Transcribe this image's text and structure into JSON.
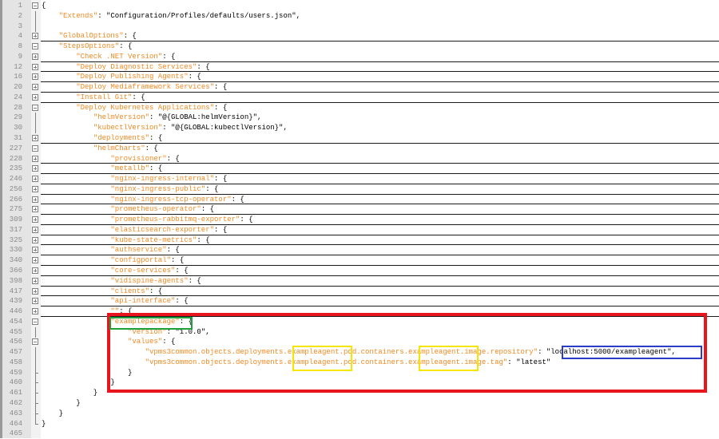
{
  "editor": {
    "colors": {
      "key": "#f08a24",
      "text": "#000000",
      "brace": "#6b5fa0",
      "highlight_package": "#1ea03c",
      "highlight_region": "#e8141e",
      "highlight_agent": "#f5e600",
      "highlight_repository": "#2a3cc8"
    },
    "lines": [
      {
        "n": "1",
        "indent": 0,
        "key": "",
        "rest": "{",
        "fold": "minus-root",
        "folded": false
      },
      {
        "n": "2",
        "indent": 1,
        "key": "\"Extends\"",
        "rest": ": \"Configuration/Profiles/defaults/users.json\",",
        "fold": "vline",
        "folded": false
      },
      {
        "n": "3",
        "indent": 0,
        "key": "",
        "rest": "",
        "fold": "vline",
        "folded": false
      },
      {
        "n": "4",
        "indent": 1,
        "key": "\"GlobalOptions\"",
        "rest": ": {",
        "fold": "plus",
        "folded": true
      },
      {
        "n": "8",
        "indent": 1,
        "key": "\"StepsOptions\"",
        "rest": ": {",
        "fold": "minus",
        "folded": false
      },
      {
        "n": "9",
        "indent": 2,
        "key": "\"Check .NET Version\"",
        "rest": ": {",
        "fold": "plus",
        "folded": true
      },
      {
        "n": "12",
        "indent": 2,
        "key": "\"Deploy Diagnostic Services\"",
        "rest": ": {",
        "fold": "plus",
        "folded": true
      },
      {
        "n": "16",
        "indent": 2,
        "key": "\"Deploy Publishing Agents\"",
        "rest": ": {",
        "fold": "plus",
        "folded": true
      },
      {
        "n": "20",
        "indent": 2,
        "key": "\"Deploy Mediaframework Services\"",
        "rest": ": {",
        "fold": "plus",
        "folded": true
      },
      {
        "n": "24",
        "indent": 2,
        "key": "\"Install Git\"",
        "rest": ": {",
        "fold": "plus",
        "folded": true
      },
      {
        "n": "28",
        "indent": 2,
        "key": "\"Deploy Kubernetes Applications\"",
        "rest": ": {",
        "fold": "minus",
        "folded": false
      },
      {
        "n": "29",
        "indent": 3,
        "key": "\"helmVersion\"",
        "rest": ": \"@{GLOBAL:helmVersion}\",",
        "fold": "vline",
        "folded": false
      },
      {
        "n": "30",
        "indent": 3,
        "key": "\"kubectlVersion\"",
        "rest": ": \"@{GLOBAL:kubectlVersion}\",",
        "fold": "vline",
        "folded": false
      },
      {
        "n": "31",
        "indent": 3,
        "key": "\"deployments\"",
        "rest": ": {",
        "fold": "plus",
        "folded": true
      },
      {
        "n": "227",
        "indent": 3,
        "key": "\"helmCharts\"",
        "rest": ": {",
        "fold": "minus",
        "folded": false
      },
      {
        "n": "228",
        "indent": 4,
        "key": "\"provisioner\"",
        "rest": ": {",
        "fold": "plus",
        "folded": true
      },
      {
        "n": "235",
        "indent": 4,
        "key": "\"metallb\"",
        "rest": ": {",
        "fold": "plus",
        "folded": true
      },
      {
        "n": "246",
        "indent": 4,
        "key": "\"nginx-ingress-internal\"",
        "rest": ": {",
        "fold": "plus",
        "folded": true
      },
      {
        "n": "256",
        "indent": 4,
        "key": "\"nginx-ingress-public\"",
        "rest": ": {",
        "fold": "plus",
        "folded": true
      },
      {
        "n": "266",
        "indent": 4,
        "key": "\"nginx-ingress-tcp-operator\"",
        "rest": ": {",
        "fold": "plus",
        "folded": true
      },
      {
        "n": "275",
        "indent": 4,
        "key": "\"prometheus-operator\"",
        "rest": ": {",
        "fold": "plus",
        "folded": true
      },
      {
        "n": "309",
        "indent": 4,
        "key": "\"prometheus-rabbitmq-exporter\"",
        "rest": ": {",
        "fold": "plus",
        "folded": true
      },
      {
        "n": "317",
        "indent": 4,
        "key": "\"elasticsearch-exporter\"",
        "rest": ": {",
        "fold": "plus",
        "folded": true
      },
      {
        "n": "325",
        "indent": 4,
        "key": "\"kube-state-metrics\"",
        "rest": ": {",
        "fold": "plus",
        "folded": true
      },
      {
        "n": "330",
        "indent": 4,
        "key": "\"authservice\"",
        "rest": ": {",
        "fold": "plus",
        "folded": true
      },
      {
        "n": "340",
        "indent": 4,
        "key": "\"configportal\"",
        "rest": ": {",
        "fold": "plus",
        "folded": true
      },
      {
        "n": "366",
        "indent": 4,
        "key": "\"core-services\"",
        "rest": ": {",
        "fold": "plus",
        "folded": true
      },
      {
        "n": "398",
        "indent": 4,
        "key": "\"vidispine-agents\"",
        "rest": ": {",
        "fold": "plus",
        "folded": true
      },
      {
        "n": "417",
        "indent": 4,
        "key": "\"clients\"",
        "rest": ": {",
        "fold": "plus",
        "folded": true
      },
      {
        "n": "439",
        "indent": 4,
        "key": "\"api-interface\"",
        "rest": ": {",
        "fold": "plus",
        "folded": true
      },
      {
        "n": "446",
        "indent": 4,
        "key": "\"\"",
        "rest": ": {",
        "fold": "plus",
        "folded": true
      },
      {
        "n": "454",
        "indent": 4,
        "key": "\"examplepackage\"",
        "rest": ": {",
        "fold": "minus",
        "folded": false
      },
      {
        "n": "455",
        "indent": 5,
        "key": "\"version\"",
        "rest": ": \"1.0.0\",",
        "fold": "vline",
        "folded": false
      },
      {
        "n": "456",
        "indent": 5,
        "key": "\"values\"",
        "rest": ": {",
        "fold": "minus",
        "folded": false
      },
      {
        "n": "457",
        "indent": 6,
        "key": "\"vpms3common.objects.deployments.exampleagent.pod.containers.exampleagent.image.repository\"",
        "rest": ": \"localhost:5000/exampleagent\",",
        "fold": "vline",
        "folded": false
      },
      {
        "n": "458",
        "indent": 6,
        "key": "\"vpms3common.objects.deployments.exampleagent.pod.containers.exampleagent.image.tag\"",
        "rest": ": \"latest\"",
        "fold": "vline",
        "folded": false
      },
      {
        "n": "459",
        "indent": 5,
        "key": "",
        "rest": "}",
        "fold": "tick",
        "folded": false
      },
      {
        "n": "460",
        "indent": 4,
        "key": "",
        "rest": "}",
        "fold": "tick",
        "folded": false
      },
      {
        "n": "461",
        "indent": 3,
        "key": "",
        "rest": "}",
        "fold": "tick",
        "folded": false
      },
      {
        "n": "462",
        "indent": 2,
        "key": "",
        "rest": "}",
        "fold": "tick",
        "folded": false
      },
      {
        "n": "463",
        "indent": 1,
        "key": "",
        "rest": "}",
        "fold": "tick",
        "folded": false
      },
      {
        "n": "464",
        "indent": 0,
        "key": "",
        "rest": "}",
        "fold": "end",
        "folded": false
      },
      {
        "n": "465",
        "indent": 0,
        "key": "",
        "rest": "",
        "fold": "none",
        "folded": false
      }
    ]
  }
}
